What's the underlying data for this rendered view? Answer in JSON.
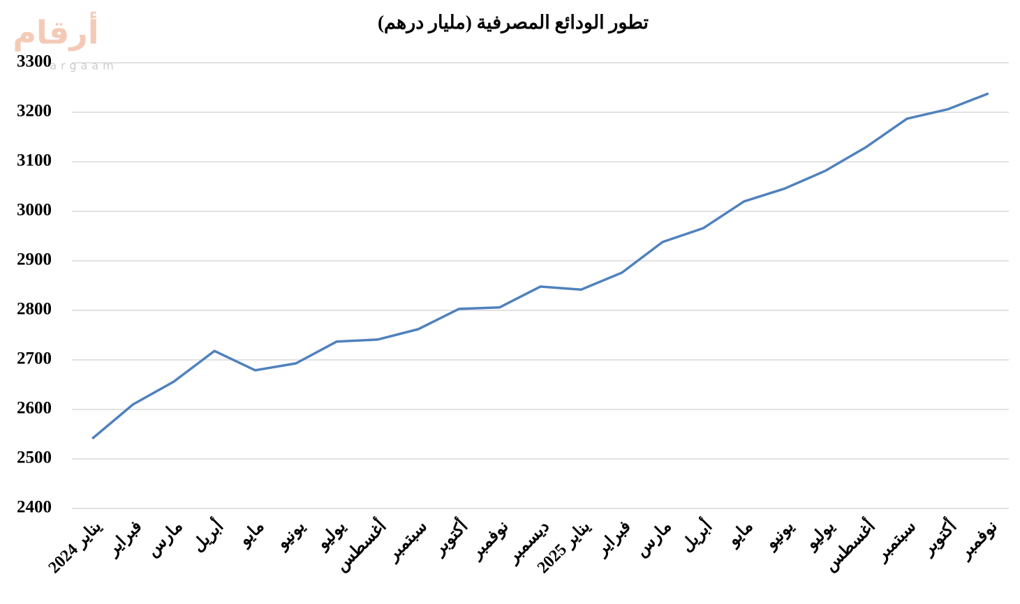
{
  "chart_data": {
    "type": "line",
    "title": "تطور الودائع المصرفية (مليار درهم)",
    "watermark": "أرقام",
    "watermark_sub": "argaam",
    "categories": [
      "يناير 2024",
      "فبراير",
      "مارس",
      "أبريل",
      "مايو",
      "يونيو",
      "يوليو",
      "أغسطس",
      "سبتمبر",
      "أكتوبر",
      "نوفمبر",
      "ديسمبر",
      "يناير 2025",
      "فبراير",
      "مارس",
      "أبريل",
      "مايو",
      "يونيو",
      "يوليو",
      "أغسطس",
      "سبتمبر",
      "أكتوبر",
      "نوفمبر"
    ],
    "series": [
      {
        "color": "#4f81bd",
        "values": [
          2541,
          2610,
          2656,
          2718,
          2679,
          2693,
          2737,
          2741,
          2762,
          2803,
          2806,
          2848,
          2842,
          2876,
          2938,
          2966,
          3020,
          3046,
          3082,
          3130,
          3187,
          3206,
          3238
        ]
      }
    ],
    "ylim": [
      2400,
      3300
    ],
    "yticks": [
      2400,
      2500,
      2600,
      2700,
      2800,
      2900,
      3000,
      3100,
      3200,
      3300
    ],
    "grid": true
  }
}
